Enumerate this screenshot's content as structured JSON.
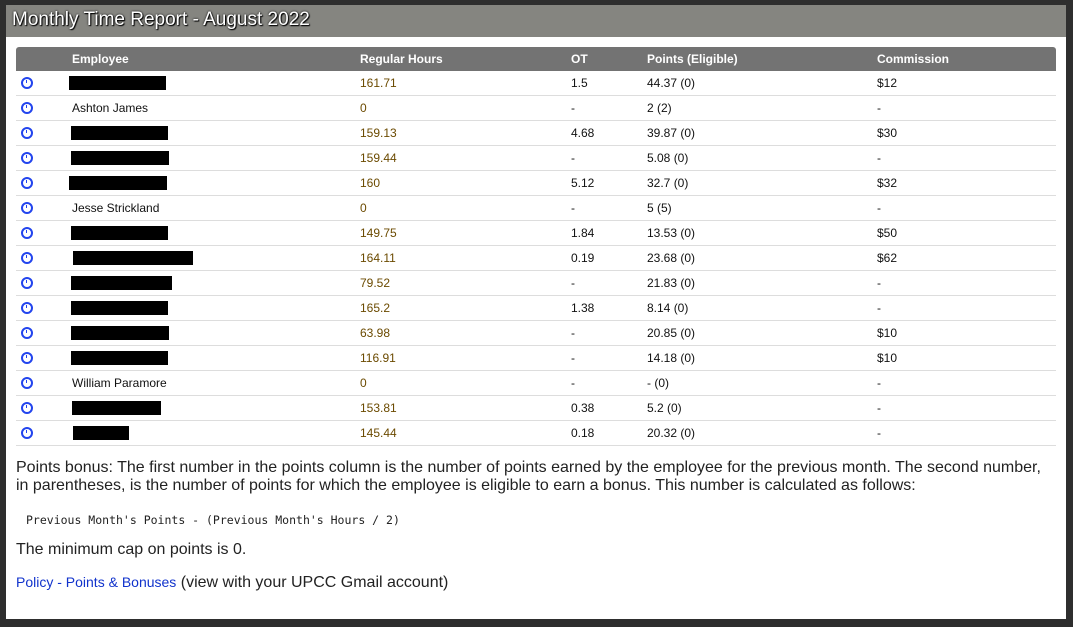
{
  "title": "Monthly Time Report - August 2022",
  "columns": [
    "",
    "Employee",
    "Regular Hours",
    "OT",
    "Points (Eligible)",
    "Commission"
  ],
  "rows": [
    {
      "employee": null,
      "redacted": true,
      "regular": "161.71",
      "ot": "1.5",
      "points": "44.37 (0)",
      "commission": "$12"
    },
    {
      "employee": "Ashton James",
      "redacted": false,
      "regular": "0",
      "ot": "-",
      "points": "2 (2)",
      "commission": "-"
    },
    {
      "employee": null,
      "redacted": true,
      "regular": "159.13",
      "ot": "4.68",
      "points": "39.87 (0)",
      "commission": "$30"
    },
    {
      "employee": null,
      "redacted": true,
      "regular": "159.44",
      "ot": "-",
      "points": "5.08 (0)",
      "commission": "-"
    },
    {
      "employee": null,
      "redacted": true,
      "regular": "160",
      "ot": "5.12",
      "points": "32.7 (0)",
      "commission": "$32"
    },
    {
      "employee": "Jesse Strickland",
      "redacted": false,
      "regular": "0",
      "ot": "-",
      "points": "5 (5)",
      "commission": "-"
    },
    {
      "employee": null,
      "redacted": true,
      "regular": "149.75",
      "ot": "1.84",
      "points": "13.53 (0)",
      "commission": "$50"
    },
    {
      "employee": null,
      "redacted": true,
      "regular": "164.11",
      "ot": "0.19",
      "points": "23.68 (0)",
      "commission": "$62"
    },
    {
      "employee": null,
      "redacted": true,
      "regular": "79.52",
      "ot": "-",
      "points": "21.83 (0)",
      "commission": "-"
    },
    {
      "employee": null,
      "redacted": true,
      "regular": "165.2",
      "ot": "1.38",
      "points": "8.14 (0)",
      "commission": "-"
    },
    {
      "employee": null,
      "redacted": true,
      "regular": "63.98",
      "ot": "-",
      "points": "20.85 (0)",
      "commission": "$10"
    },
    {
      "employee": null,
      "redacted": true,
      "regular": "116.91",
      "ot": "-",
      "points": "14.18 (0)",
      "commission": "$10"
    },
    {
      "employee": "William Paramore",
      "redacted": false,
      "regular": "0",
      "ot": "-",
      "points": "- (0)",
      "commission": "-"
    },
    {
      "employee": null,
      "redacted": true,
      "regular": "153.81",
      "ot": "0.38",
      "points": "5.2 (0)",
      "commission": "-"
    },
    {
      "employee": null,
      "redacted": true,
      "regular": "145.44",
      "ot": "0.18",
      "points": "20.32 (0)",
      "commission": "-"
    }
  ],
  "notes": {
    "bonus": "Points bonus: The first number in the points column is the number of points earned by the employee for the previous month. The second number, in parentheses, is the number of points for which the employee is eligible to earn a bonus. This number is calculated as follows:",
    "formula": "Previous Month's Points - (Previous Month's Hours / 2)",
    "cap": "The minimum cap on points is 0.",
    "link": "Policy - Points & Bonuses",
    "link_suffix": " (view with your UPCC Gmail account)"
  },
  "colors": {
    "title_bar": "#858580",
    "header": "#737373",
    "icon": "#2244ee",
    "link": "#1133cc"
  },
  "icons": {
    "row": "clock-icon"
  }
}
